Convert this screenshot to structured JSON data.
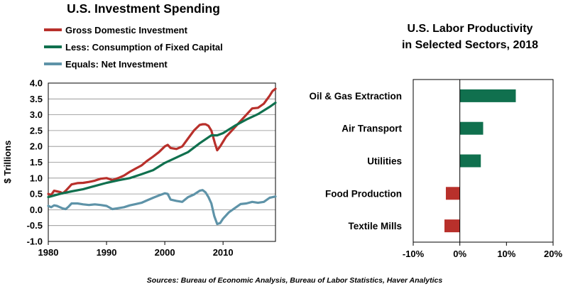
{
  "source_note": "Sources: Bureau of Economic Analysis, Bureau of Labor Statistics, Haver Analytics",
  "chart_data": [
    {
      "type": "line",
      "title": "U.S. Investment Spending",
      "xlabel": "",
      "ylabel": "$ Trillions",
      "xlim": [
        1980,
        2019
      ],
      "ylim": [
        -1.0,
        4.0
      ],
      "x_ticks": [
        "1980",
        "1990",
        "2000",
        "2010"
      ],
      "y_ticks": [
        "4.0",
        "3.5",
        "3.0",
        "2.5",
        "2.0",
        "1.5",
        "1.0",
        "0.5",
        "0.0",
        "-0.5",
        "-1.0"
      ],
      "grid": true,
      "legend_position": "top-left",
      "series": [
        {
          "name": "Gross Domestic Investment",
          "color": "#b8302b",
          "points": [
            [
              1980,
              0.5
            ],
            [
              1980.5,
              0.47
            ],
            [
              1981,
              0.6
            ],
            [
              1981.5,
              0.58
            ],
            [
              1982,
              0.56
            ],
            [
              1982.5,
              0.52
            ],
            [
              1983,
              0.6
            ],
            [
              1983.5,
              0.7
            ],
            [
              1984,
              0.8
            ],
            [
              1985,
              0.84
            ],
            [
              1986,
              0.85
            ],
            [
              1987,
              0.88
            ],
            [
              1988,
              0.92
            ],
            [
              1989,
              0.98
            ],
            [
              1990,
              1.0
            ],
            [
              1991,
              0.94
            ],
            [
              1992,
              1.0
            ],
            [
              1993,
              1.08
            ],
            [
              1994,
              1.2
            ],
            [
              1995,
              1.3
            ],
            [
              1996,
              1.4
            ],
            [
              1997,
              1.55
            ],
            [
              1998,
              1.68
            ],
            [
              1999,
              1.82
            ],
            [
              2000,
              2.0
            ],
            [
              2000.5,
              2.05
            ],
            [
              2001,
              1.95
            ],
            [
              2002,
              1.92
            ],
            [
              2003,
              2.0
            ],
            [
              2004,
              2.25
            ],
            [
              2005,
              2.5
            ],
            [
              2006,
              2.68
            ],
            [
              2006.5,
              2.7
            ],
            [
              2007,
              2.7
            ],
            [
              2007.5,
              2.65
            ],
            [
              2008,
              2.5
            ],
            [
              2008.6,
              2.1
            ],
            [
              2009,
              1.88
            ],
            [
              2009.5,
              2.0
            ],
            [
              2010,
              2.15
            ],
            [
              2010.5,
              2.3
            ],
            [
              2011,
              2.4
            ],
            [
              2012,
              2.6
            ],
            [
              2013,
              2.8
            ],
            [
              2014,
              3.0
            ],
            [
              2015,
              3.2
            ],
            [
              2016,
              3.22
            ],
            [
              2017,
              3.35
            ],
            [
              2018,
              3.6
            ],
            [
              2018.5,
              3.75
            ],
            [
              2019,
              3.82
            ]
          ]
        },
        {
          "name": "Less: Consumption of Fixed Capital",
          "color": "#10704e",
          "points": [
            [
              1980,
              0.4
            ],
            [
              1982,
              0.5
            ],
            [
              1984,
              0.58
            ],
            [
              1986,
              0.65
            ],
            [
              1988,
              0.75
            ],
            [
              1990,
              0.85
            ],
            [
              1992,
              0.93
            ],
            [
              1994,
              1.0
            ],
            [
              1996,
              1.12
            ],
            [
              1998,
              1.25
            ],
            [
              2000,
              1.48
            ],
            [
              2002,
              1.65
            ],
            [
              2004,
              1.82
            ],
            [
              2006,
              2.1
            ],
            [
              2008,
              2.35
            ],
            [
              2009,
              2.35
            ],
            [
              2010,
              2.42
            ],
            [
              2012,
              2.65
            ],
            [
              2014,
              2.85
            ],
            [
              2016,
              3.02
            ],
            [
              2018,
              3.25
            ],
            [
              2019,
              3.38
            ]
          ]
        },
        {
          "name": "Equals: Net Investment",
          "color": "#5e93a8",
          "points": [
            [
              1980,
              0.12
            ],
            [
              1980.5,
              0.08
            ],
            [
              1981,
              0.14
            ],
            [
              1981.5,
              0.12
            ],
            [
              1982,
              0.08
            ],
            [
              1982.5,
              0.04
            ],
            [
              1983,
              0.02
            ],
            [
              1983.5,
              0.1
            ],
            [
              1984,
              0.2
            ],
            [
              1985,
              0.2
            ],
            [
              1986,
              0.17
            ],
            [
              1987,
              0.15
            ],
            [
              1988,
              0.17
            ],
            [
              1989,
              0.15
            ],
            [
              1990,
              0.12
            ],
            [
              1991,
              0.02
            ],
            [
              1992,
              0.05
            ],
            [
              1993,
              0.08
            ],
            [
              1994,
              0.14
            ],
            [
              1995,
              0.18
            ],
            [
              1996,
              0.22
            ],
            [
              1997,
              0.3
            ],
            [
              1998,
              0.38
            ],
            [
              1999,
              0.45
            ],
            [
              2000,
              0.52
            ],
            [
              2000.5,
              0.5
            ],
            [
              2001,
              0.32
            ],
            [
              2002,
              0.28
            ],
            [
              2003,
              0.25
            ],
            [
              2004,
              0.4
            ],
            [
              2005,
              0.48
            ],
            [
              2006,
              0.6
            ],
            [
              2006.5,
              0.62
            ],
            [
              2007,
              0.55
            ],
            [
              2007.5,
              0.4
            ],
            [
              2008,
              0.2
            ],
            [
              2008.5,
              -0.2
            ],
            [
              2009,
              -0.45
            ],
            [
              2009.5,
              -0.42
            ],
            [
              2010,
              -0.28
            ],
            [
              2011,
              -0.08
            ],
            [
              2012,
              0.05
            ],
            [
              2013,
              0.18
            ],
            [
              2014,
              0.2
            ],
            [
              2015,
              0.25
            ],
            [
              2016,
              0.22
            ],
            [
              2017,
              0.25
            ],
            [
              2018,
              0.38
            ],
            [
              2019,
              0.42
            ]
          ]
        }
      ]
    },
    {
      "type": "bar",
      "orientation": "horizontal",
      "title_lines": [
        "U.S. Labor Productivity",
        "in Selected Sectors, 2018"
      ],
      "xlabel": "",
      "ylabel": "",
      "xlim": [
        -10,
        20
      ],
      "x_ticks": [
        "-10%",
        "0%",
        "10%",
        "20%"
      ],
      "grid": false,
      "categories": [
        "Oil & Gas Extraction",
        "Air Transport",
        "Utilities",
        "Food Production",
        "Textile Mills"
      ],
      "values": [
        12.0,
        5.0,
        4.5,
        -3.0,
        -3.3
      ],
      "positive_color": "#10704e",
      "negative_color": "#b8302b"
    }
  ]
}
